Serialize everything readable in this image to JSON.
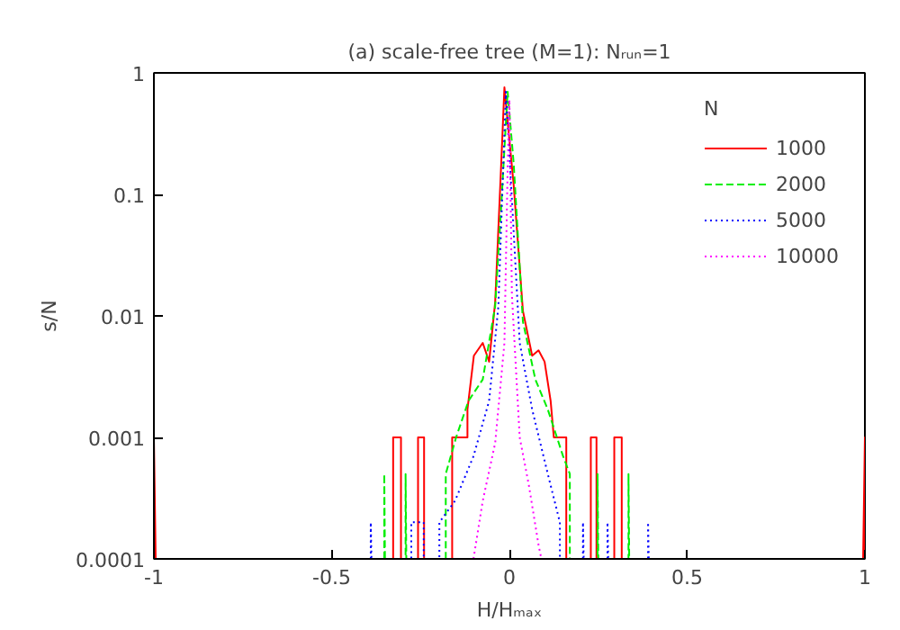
{
  "chart_data": {
    "type": "line",
    "title": "(a) scale-free tree (M=1): Nᵣᵤₙ=1",
    "xlabel": "H/Hₘₐₓ",
    "ylabel": "s/N",
    "legend_title": "N",
    "log": "y",
    "grid": false,
    "legend": "top right",
    "xlim": [
      -1,
      1
    ],
    "ylim": [
      0.0001,
      1
    ],
    "xticks": [
      -1,
      -0.5,
      0,
      0.5,
      1
    ],
    "yticks": [
      1,
      0.1,
      0.01,
      0.001,
      0.0001
    ],
    "series": [
      {
        "name": "1000",
        "color": "#ff0000",
        "line_style": "solid",
        "x": [
          -1,
          -1,
          -0.995,
          -0.327,
          -0.327,
          -0.305,
          -0.305,
          -0.257,
          -0.257,
          -0.24,
          -0.24,
          -0.161,
          -0.161,
          -0.118,
          -0.118,
          -0.1,
          -0.075,
          -0.057,
          -0.04,
          -0.022,
          -0.014,
          0.012,
          0.038,
          0.064,
          0.082,
          0.099,
          0.116,
          0.125,
          0.16,
          0.16,
          0.229,
          0.229,
          0.245,
          0.245,
          0.295,
          0.295,
          0.316,
          0.316,
          0.995,
          1,
          1
        ],
        "values": [
          0.0001,
          0.001,
          0.0001,
          0.0001,
          0.001,
          0.001,
          0.0001,
          0.0001,
          0.001,
          0.001,
          0.0001,
          0.0001,
          0.001,
          0.001,
          0.0017,
          0.0047,
          0.006,
          0.0042,
          0.013,
          0.21,
          0.76,
          0.12,
          0.011,
          0.0047,
          0.0052,
          0.0042,
          0.002,
          0.001,
          0.001,
          0.0001,
          0.0001,
          0.001,
          0.001,
          0.0001,
          0.0001,
          0.001,
          0.001,
          0.0001,
          0.0001,
          0.001,
          0.0001
        ]
      },
      {
        "name": "2000",
        "color": "#00ee00",
        "line_style": "dashed",
        "x": [
          -0.352,
          -0.352,
          -0.35,
          -0.292,
          -0.292,
          -0.29,
          -0.179,
          -0.179,
          -0.15,
          -0.115,
          -0.075,
          -0.04,
          -0.022,
          -0.005,
          0.012,
          0.038,
          0.073,
          0.108,
          0.151,
          0.17,
          0.17,
          0.248,
          0.248,
          0.25,
          0.335,
          0.335,
          0.337
        ],
        "values": [
          0.0001,
          0.0005,
          0.0001,
          0.0001,
          0.0005,
          0.0001,
          0.0001,
          0.0005,
          0.001,
          0.002,
          0.003,
          0.012,
          0.09,
          0.7,
          0.18,
          0.009,
          0.003,
          0.0017,
          0.0007,
          0.0005,
          0.0001,
          0.0001,
          0.0005,
          0.0001,
          0.0001,
          0.0005,
          0.0001
        ]
      },
      {
        "name": "5000",
        "color": "#0000ff",
        "line_style": "dotted",
        "x": [
          -0.39,
          -0.39,
          -0.388,
          -0.276,
          -0.276,
          -0.241,
          -0.241,
          -0.197,
          -0.197,
          -0.153,
          -0.101,
          -0.057,
          -0.031,
          -0.01,
          0.003,
          0.029,
          0.064,
          0.108,
          0.142,
          0.142,
          0.207,
          0.207,
          0.209,
          0.276,
          0.276,
          0.278,
          0.39,
          0.39,
          0.392
        ],
        "values": [
          0.0001,
          0.0002,
          0.0001,
          0.0001,
          0.0002,
          0.0002,
          0.0001,
          0.0001,
          0.0002,
          0.0003,
          0.0007,
          0.002,
          0.012,
          0.7,
          0.15,
          0.006,
          0.0017,
          0.0005,
          0.0002,
          0.0001,
          0.0001,
          0.0002,
          0.0001,
          0.0001,
          0.0002,
          0.0001,
          0.0001,
          0.0002,
          0.0001
        ]
      },
      {
        "name": "10000",
        "color": "#ff00ff",
        "line_style": "dotted",
        "x": [
          -0.101,
          -0.075,
          -0.04,
          -0.014,
          -0.005,
          0.0,
          0.007,
          0.029,
          0.055,
          0.082,
          0.09
        ],
        "values": [
          0.0001,
          0.0003,
          0.0009,
          0.006,
          0.16,
          0.6,
          0.015,
          0.001,
          0.0004,
          0.00013,
          0.0001
        ]
      }
    ]
  }
}
